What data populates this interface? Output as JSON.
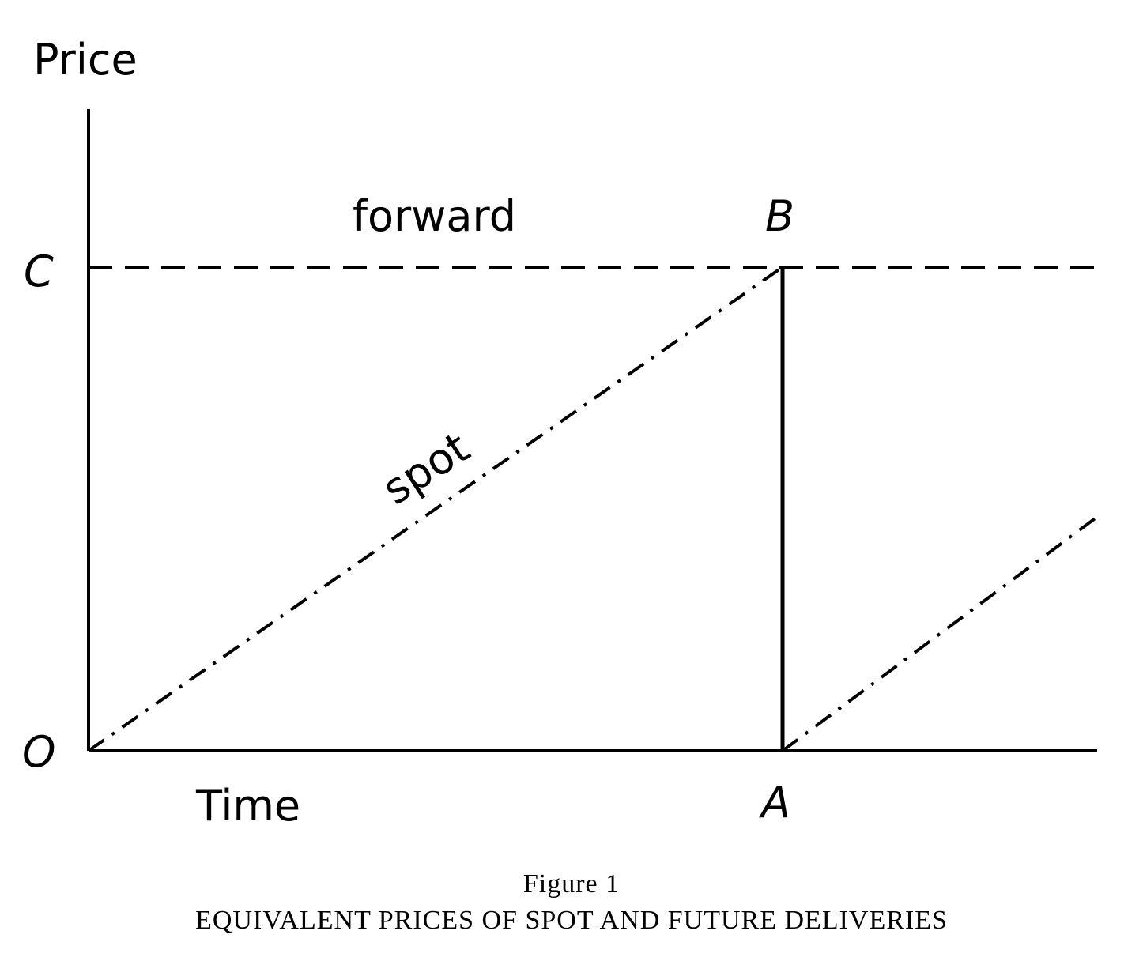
{
  "chart_data": {
    "type": "line",
    "ylabel": "Price",
    "xlabel": "Time",
    "point_labels": {
      "origin": "O",
      "A": "A",
      "B": "B",
      "C": "C"
    },
    "x_points": {
      "O": 0,
      "A": 1
    },
    "y_points": {
      "O": 0,
      "C": 1
    },
    "xlim": [
      0,
      1.45
    ],
    "ylim": [
      0,
      1.3
    ],
    "grid": false,
    "legend": "none",
    "series": [
      {
        "name": "forward",
        "style": "dashed",
        "x": [
          0,
          1.45
        ],
        "y": [
          1,
          1
        ]
      },
      {
        "name": "spot",
        "style": "dash-dot",
        "x": [
          0,
          1
        ],
        "y": [
          0,
          1
        ]
      },
      {
        "style": "dash-dot",
        "x": [
          1,
          1.45
        ],
        "y": [
          0,
          0.48
        ]
      },
      {
        "style": "solid",
        "x": [
          1,
          1
        ],
        "y": [
          0,
          1
        ]
      }
    ]
  },
  "caption": {
    "figure_number": "Figure 1",
    "title": "EQUIVALENT PRICES OF SPOT AND FUTURE DELIVERIES"
  }
}
